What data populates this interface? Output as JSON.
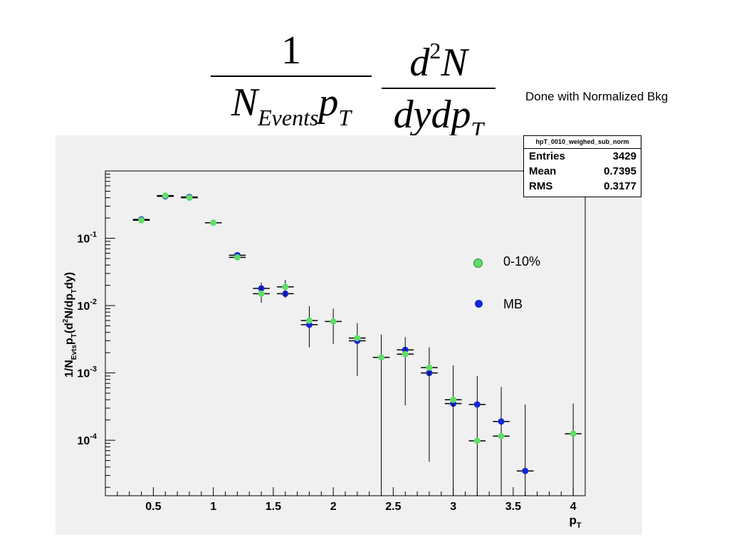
{
  "header": {
    "frac1_num": "1",
    "frac1_den_main": "N",
    "frac1_den_sub": "Events",
    "frac1_den_tail": "p",
    "frac1_den_tail_sub": "T",
    "frac2_num_a": "d",
    "frac2_num_sup": "2",
    "frac2_num_b": "N",
    "frac2_den": "dydp",
    "frac2_den_sub": "T",
    "note": "Done with Normalized Bkg"
  },
  "stats_box": {
    "title": "hpT_0010_weighed_sub_norm",
    "rows": [
      {
        "label": "Entries",
        "value": "3429"
      },
      {
        "label": "Mean",
        "value": "0.7395"
      },
      {
        "label": "RMS",
        "value": "0.3177"
      }
    ]
  },
  "legend": {
    "items": [
      {
        "label": "0-10%",
        "color": "#5fdd6a"
      },
      {
        "label": "MB",
        "color": "#1526d8"
      }
    ]
  },
  "chart_data": {
    "type": "scatter",
    "xlabel": "p_T",
    "ylabel": "1/N_Evts p_T (d²N/dp_T dy)",
    "xlim": [
      0.1,
      4.1
    ],
    "ylim": [
      1.5e-05,
      1
    ],
    "yscale": "log",
    "x_ticks": [
      0.5,
      1,
      1.5,
      2,
      2.5,
      3,
      3.5,
      4
    ],
    "x_tick_labels": [
      "0.5",
      "1",
      "1.5",
      "2",
      "2.5",
      "3",
      "3.5",
      "4"
    ],
    "y_ticks": [
      0.1,
      0.01,
      0.001,
      0.0001
    ],
    "y_tick_labels": [
      {
        "base": "10",
        "exp": "-1"
      },
      {
        "base": "10",
        "exp": "-2"
      },
      {
        "base": "10",
        "exp": "-3"
      },
      {
        "base": "10",
        "exp": "-4"
      }
    ],
    "x_bin_half_width": 0.07,
    "grid": false,
    "series": [
      {
        "name": "MB",
        "color": "#1526d8",
        "points": [
          {
            "x": 0.4,
            "y": 0.19
          },
          {
            "x": 0.6,
            "y": 0.42
          },
          {
            "x": 0.8,
            "y": 0.41
          },
          {
            "x": 1.2,
            "y": 0.056
          },
          {
            "x": 1.4,
            "y": 0.018,
            "ylo": 0.015,
            "yhi": 0.022
          },
          {
            "x": 1.6,
            "y": 0.015
          },
          {
            "x": 1.8,
            "y": 0.0052,
            "ylo": 0.0024,
            "yhi": 0.0098
          },
          {
            "x": 2.2,
            "y": 0.003,
            "ylo": 0.0009,
            "yhi": 0.0055
          },
          {
            "x": 2.6,
            "y": 0.0022
          },
          {
            "x": 2.8,
            "y": 0.001
          },
          {
            "x": 3.0,
            "y": 0.00035
          },
          {
            "x": 3.2,
            "y": 0.00034,
            "ylo": 1.5e-05,
            "yhi": 0.0009
          },
          {
            "x": 3.4,
            "y": 0.00019,
            "ylo": 1.5e-05,
            "yhi": 0.00062
          },
          {
            "x": 3.6,
            "y": 3.5e-05,
            "ylo": 1.5e-05,
            "yhi": 0.00034
          }
        ]
      },
      {
        "name": "0-10%",
        "color": "#5fdd6a",
        "points": [
          {
            "x": 0.4,
            "y": 0.185
          },
          {
            "x": 0.6,
            "y": 0.43
          },
          {
            "x": 0.8,
            "y": 0.4
          },
          {
            "x": 1.0,
            "y": 0.17
          },
          {
            "x": 1.2,
            "y": 0.052
          },
          {
            "x": 1.4,
            "y": 0.015,
            "ylo": 0.011,
            "yhi": 0.019
          },
          {
            "x": 1.6,
            "y": 0.019,
            "ylo": 0.013,
            "yhi": 0.024
          },
          {
            "x": 1.8,
            "y": 0.006
          },
          {
            "x": 2.0,
            "y": 0.0058,
            "ylo": 0.0027,
            "yhi": 0.009
          },
          {
            "x": 2.2,
            "y": 0.0033
          },
          {
            "x": 2.4,
            "y": 0.0017,
            "ylo": 1.5e-05,
            "yhi": 0.0037
          },
          {
            "x": 2.6,
            "y": 0.0019,
            "ylo": 0.00033,
            "yhi": 0.0034
          },
          {
            "x": 2.8,
            "y": 0.0012,
            "ylo": 4.8e-05,
            "yhi": 0.0024
          },
          {
            "x": 3.0,
            "y": 0.0004,
            "ylo": 1.5e-05,
            "yhi": 0.0013
          },
          {
            "x": 3.2,
            "y": 9.8e-05
          },
          {
            "x": 3.4,
            "y": 0.000115
          },
          {
            "x": 4.0,
            "y": 0.000125,
            "ylo": 1.5e-05,
            "yhi": 0.00035
          }
        ]
      }
    ]
  }
}
